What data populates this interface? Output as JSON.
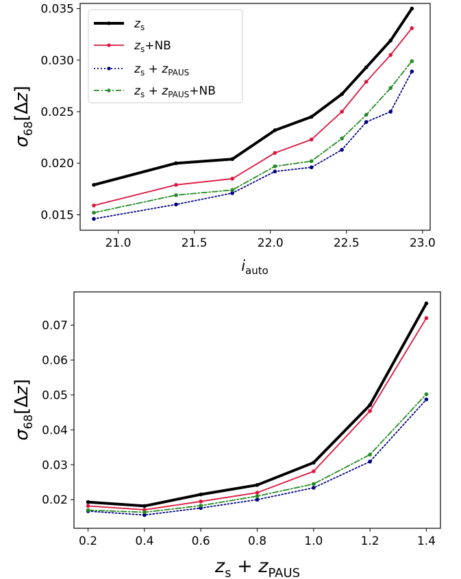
{
  "chart_data": [
    {
      "type": "line",
      "xlabel": "i_auto",
      "ylabel": "σ68[Δz]",
      "xlim": [
        20.75,
        23.05
      ],
      "ylim": [
        0.0135,
        0.0355
      ],
      "xticks": [
        "21.0",
        "21.5",
        "22.0",
        "22.5",
        "23.0"
      ],
      "yticks": [
        "0.015",
        "0.020",
        "0.025",
        "0.030",
        "0.035"
      ],
      "x": [
        20.84,
        21.38,
        21.75,
        22.03,
        22.27,
        22.47,
        22.63,
        22.79,
        22.93
      ],
      "series": [
        {
          "name": "z_s",
          "color": "#000000",
          "style": "solid",
          "values": [
            0.0179,
            0.02,
            0.0204,
            0.0232,
            0.0245,
            0.0267,
            0.0293,
            0.0319,
            0.035
          ]
        },
        {
          "name": "z_s+NB",
          "color": "#dc143c",
          "style": "solid",
          "values": [
            0.0159,
            0.0179,
            0.0185,
            0.021,
            0.0223,
            0.025,
            0.0279,
            0.0305,
            0.0331
          ]
        },
        {
          "name": "z_s + z_PAUS",
          "color": "#000080",
          "style": "dotted",
          "values": [
            0.0146,
            0.016,
            0.0171,
            0.0192,
            0.0196,
            0.0213,
            0.024,
            0.025,
            0.0289
          ]
        },
        {
          "name": "z_s + z_PAUS+NB",
          "color": "#228b22",
          "style": "dashdot",
          "values": [
            0.0152,
            0.0169,
            0.0174,
            0.0197,
            0.0202,
            0.0224,
            0.0247,
            0.0273,
            0.0299
          ]
        }
      ],
      "legend": "upper-left"
    },
    {
      "type": "line",
      "xlabel": "z_s + z_PAUS",
      "ylabel": "σ68[Δz]",
      "xlim": [
        0.15,
        1.45
      ],
      "ylim": [
        0.0118,
        0.0795
      ],
      "xticks": [
        "0.2",
        "0.4",
        "0.6",
        "0.8",
        "1.0",
        "1.2",
        "1.4"
      ],
      "yticks": [
        "0.02",
        "0.03",
        "0.04",
        "0.05",
        "0.06",
        "0.07"
      ],
      "x": [
        0.2,
        0.4,
        0.6,
        0.8,
        1.0,
        1.2,
        1.4
      ],
      "series": [
        {
          "name": "z_s",
          "color": "#000000",
          "style": "solid",
          "values": [
            0.0193,
            0.0182,
            0.0215,
            0.0242,
            0.0306,
            0.0471,
            0.0762
          ]
        },
        {
          "name": "z_s+NB",
          "color": "#dc143c",
          "style": "solid",
          "values": [
            0.0182,
            0.0171,
            0.0195,
            0.022,
            0.0281,
            0.0454,
            0.072
          ]
        },
        {
          "name": "z_s + z_PAUS",
          "color": "#000080",
          "style": "dotted",
          "values": [
            0.0167,
            0.0156,
            0.0176,
            0.02,
            0.0234,
            0.0309,
            0.0487
          ]
        },
        {
          "name": "z_s + z_PAUS+NB",
          "color": "#228b22",
          "style": "dashdot",
          "values": [
            0.017,
            0.0164,
            0.0183,
            0.021,
            0.0245,
            0.0329,
            0.0502
          ]
        }
      ]
    }
  ]
}
